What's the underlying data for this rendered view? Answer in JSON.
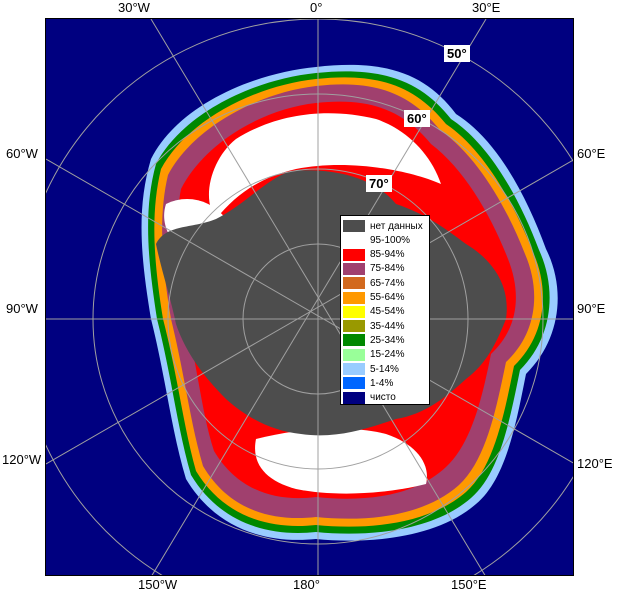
{
  "map": {
    "longitude_labels": {
      "top_30w": "30°W",
      "top_0": "0°",
      "top_30e": "30°E",
      "left_60w": "60°W",
      "right_60e": "60°E",
      "left_90w": "90°W",
      "right_90e": "90°E",
      "left_120w": "120°W",
      "right_120e": "120°E",
      "bottom_150w": "150°W",
      "bottom_180": "180°",
      "bottom_150e": "150°E"
    },
    "latitude_labels": {
      "lat_50": "50°",
      "lat_60": "60°",
      "lat_70": "70°"
    },
    "colors": {
      "ocean": "#000080",
      "land": "#4d4d4d",
      "graticule": "#a0a0a0"
    }
  },
  "legend": {
    "items": [
      {
        "label": "нет данных",
        "color": "#4d4d4d"
      },
      {
        "label": "95-100%",
        "color": "#ffffff"
      },
      {
        "label": "85-94%",
        "color": "#ff0000"
      },
      {
        "label": "75-84%",
        "color": "#a0406e"
      },
      {
        "label": "65-74%",
        "color": "#d2691e"
      },
      {
        "label": "55-64%",
        "color": "#ff9900"
      },
      {
        "label": "45-54%",
        "color": "#ffff00"
      },
      {
        "label": "35-44%",
        "color": "#999900"
      },
      {
        "label": "25-34%",
        "color": "#008800"
      },
      {
        "label": "15-24%",
        "color": "#99ff99"
      },
      {
        "label": "5-14%",
        "color": "#99ccff"
      },
      {
        "label": "1-4%",
        "color": "#0066ff"
      },
      {
        "label": "чисто",
        "color": "#000080"
      }
    ]
  }
}
